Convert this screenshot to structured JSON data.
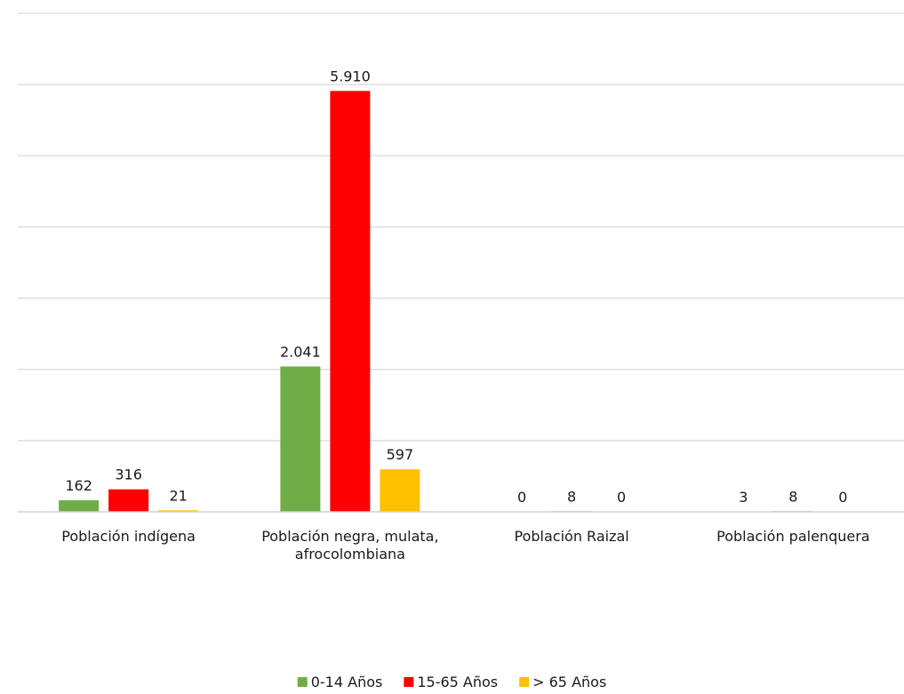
{
  "chart_data": {
    "type": "bar",
    "categories": [
      [
        "Población indígena"
      ],
      [
        "Población negra, mulata,",
        "afrocolombiana"
      ],
      [
        "Población Raizal"
      ],
      [
        "Población palenquera"
      ]
    ],
    "series": [
      {
        "name": "0-14 Años",
        "color": "#70AD47",
        "values": [
          162,
          2041,
          0,
          3
        ],
        "labels": [
          "162",
          "2.041",
          "0",
          "3"
        ]
      },
      {
        "name": "15-65 Años",
        "color": "#FF0000",
        "values": [
          316,
          5910,
          8,
          8
        ],
        "labels": [
          "316",
          "5.910",
          "8",
          "8"
        ]
      },
      {
        "name": "> 65 Años",
        "color": "#FFC000",
        "values": [
          21,
          597,
          0,
          0
        ],
        "labels": [
          "21",
          "597",
          "0",
          "0"
        ]
      }
    ],
    "ylim": [
      0,
      7000
    ],
    "grid": true,
    "legend": "bottom-center",
    "title": "",
    "xlabel": "",
    "ylabel": ""
  }
}
